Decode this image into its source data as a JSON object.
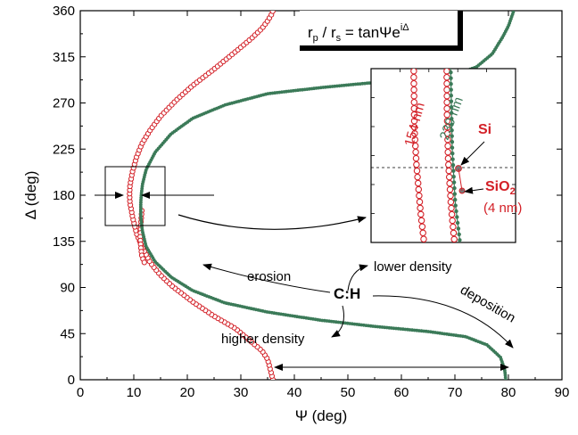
{
  "chart_data": {
    "type": "scatter",
    "xlabel": "Ψ (deg)",
    "ylabel": "Δ (deg)",
    "xlim": [
      0,
      90
    ],
    "ylim": [
      0,
      360
    ],
    "x_ticks": [
      "0",
      "10",
      "20",
      "30",
      "40",
      "50",
      "60",
      "70",
      "80",
      "90"
    ],
    "y_ticks": [
      "0",
      "45",
      "90",
      "135",
      "180",
      "225",
      "270",
      "315",
      "360"
    ],
    "grid": false,
    "colors": {
      "red_series": "#d32027",
      "green_series": "#3b7a58"
    },
    "formula": {
      "main": "r",
      "p": "p",
      "sep": " / r",
      "s": "s",
      "eq": " = tanΨe",
      "sup": "iΔ"
    },
    "series": [
      {
        "style": "open circles",
        "color": "#d32027",
        "points": [
          [
            36,
            0
          ],
          [
            35.5,
            10
          ],
          [
            35,
            20
          ],
          [
            34,
            28
          ],
          [
            29,
            50
          ],
          [
            25,
            62
          ],
          [
            21,
            76
          ],
          [
            17,
            92
          ],
          [
            15,
            102
          ],
          [
            14,
            108
          ],
          [
            13,
            115
          ],
          [
            11.5,
            130
          ],
          [
            10.5,
            143
          ],
          [
            9.8,
            158
          ],
          [
            9.3,
            172
          ],
          [
            9.2,
            180
          ],
          [
            9.3,
            190
          ],
          [
            9.8,
            204
          ],
          [
            10.5,
            217
          ],
          [
            11.5,
            230
          ],
          [
            13,
            243
          ],
          [
            15,
            257
          ],
          [
            18,
            273
          ],
          [
            21,
            287
          ],
          [
            25,
            303
          ],
          [
            29,
            320
          ],
          [
            32,
            333
          ],
          [
            34,
            343
          ],
          [
            35,
            350
          ],
          [
            35.7,
            356
          ],
          [
            36,
            360
          ]
        ]
      },
      {
        "style": "open circles",
        "color": "#d32027",
        "points": [
          [
            11.5,
            165
          ],
          [
            11.3,
            150
          ],
          [
            11.2,
            140
          ],
          [
            11.3,
            130
          ],
          [
            11.5,
            121
          ],
          [
            12,
            114
          ]
        ]
      },
      {
        "style": "filled dots with line",
        "color": "#3b7a58",
        "points": [
          [
            79.5,
            0
          ],
          [
            79.3,
            10
          ],
          [
            78.5,
            22
          ],
          [
            76,
            34
          ],
          [
            72,
            42
          ],
          [
            65,
            47
          ],
          [
            55,
            52
          ],
          [
            45,
            58
          ],
          [
            35,
            66
          ],
          [
            27,
            75
          ],
          [
            21,
            87
          ],
          [
            17,
            100
          ],
          [
            14,
            115
          ],
          [
            12.3,
            130
          ],
          [
            11.6,
            145
          ],
          [
            11.3,
            160
          ],
          [
            11.3,
            172
          ],
          [
            11.4,
            180
          ],
          [
            11.6,
            190
          ],
          [
            12.3,
            205
          ],
          [
            14,
            222
          ],
          [
            17,
            240
          ],
          [
            21,
            255
          ],
          [
            27,
            268
          ],
          [
            35,
            279
          ],
          [
            45,
            285
          ],
          [
            55,
            290
          ],
          [
            65,
            294
          ],
          [
            70,
            298
          ],
          [
            74,
            305
          ],
          [
            77,
            318
          ],
          [
            79,
            335
          ],
          [
            80,
            345
          ],
          [
            81,
            360
          ]
        ]
      }
    ],
    "zoom_box": {
      "x": [
        5.5,
        16
      ],
      "y": [
        152,
        210
      ]
    },
    "inset_xlim": [
      5.5,
      16
    ],
    "inset_ylim": [
      152,
      210
    ],
    "inset_series": [
      {
        "color": "#d32027",
        "points": [
          [
            8.8,
            230
          ],
          [
            8.6,
            210
          ],
          [
            8.65,
            190
          ],
          [
            8.8,
            178
          ],
          [
            9.1,
            162
          ],
          [
            9.4,
            150
          ]
        ]
      },
      {
        "color": "#d32027",
        "points": [
          [
            11.2,
            230
          ],
          [
            11,
            212
          ],
          [
            11.02,
            195
          ],
          [
            11.1,
            180
          ],
          [
            11.3,
            165
          ],
          [
            11.6,
            150
          ]
        ]
      },
      {
        "color": "#3b7a58",
        "points": [
          [
            11.15,
            230
          ],
          [
            11.28,
            212
          ],
          [
            11.33,
            199
          ],
          [
            11.4,
            183
          ],
          [
            11.62,
            165
          ],
          [
            12.02,
            150
          ]
        ]
      }
    ],
    "inset_labels": {
      "thick_154": "154 nm",
      "thick_230": "230 nm",
      "si": "Si",
      "sio2_main": "SiO",
      "sio2_sub": "2",
      "sio2_thick": "(4 nm)"
    },
    "annotations": {
      "erosion": "erosion",
      "lower_density": "lower density",
      "ch": "C:H",
      "deposition": "deposition",
      "higher_density": "higher density"
    }
  }
}
